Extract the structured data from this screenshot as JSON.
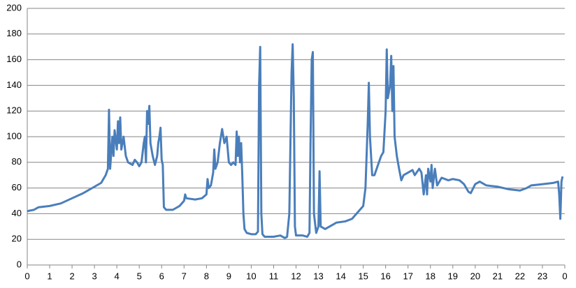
{
  "chart_data": {
    "type": "line",
    "color": "#4a7ebb",
    "grid": true,
    "xlim": [
      0,
      24
    ],
    "ylim": [
      0,
      200
    ],
    "yticks": [
      0,
      20,
      40,
      60,
      80,
      100,
      120,
      140,
      160,
      180,
      200
    ],
    "xticks": [
      0,
      1,
      2,
      3,
      4,
      5,
      6,
      7,
      8,
      9,
      10,
      11,
      12,
      13,
      14,
      15,
      16,
      17,
      18,
      19,
      20,
      21,
      22,
      23,
      {
        "value": 24,
        "label": "0"
      }
    ],
    "x": [
      0,
      0.3,
      0.5,
      1,
      1.5,
      2,
      2.5,
      3,
      3.3,
      3.5,
      3.6,
      3.65,
      3.7,
      3.8,
      3.85,
      3.9,
      4.0,
      4.05,
      4.1,
      4.15,
      4.2,
      4.3,
      4.4,
      4.5,
      4.7,
      4.8,
      4.9,
      5.0,
      5.1,
      5.2,
      5.25,
      5.3,
      5.35,
      5.4,
      5.45,
      5.5,
      5.6,
      5.7,
      5.8,
      5.85,
      5.9,
      5.95,
      6.0,
      6.05,
      6.1,
      6.2,
      6.5,
      6.8,
      7.0,
      7.05,
      7.1,
      7.5,
      7.8,
      8.0,
      8.05,
      8.1,
      8.2,
      8.3,
      8.35,
      8.4,
      8.5,
      8.6,
      8.7,
      8.8,
      8.9,
      9.0,
      9.1,
      9.2,
      9.3,
      9.35,
      9.4,
      9.45,
      9.5,
      9.55,
      9.6,
      9.65,
      9.7,
      9.8,
      10.0,
      10.2,
      10.3,
      10.35,
      10.4,
      10.45,
      10.5,
      10.6,
      11.0,
      11.3,
      11.5,
      11.6,
      11.7,
      11.8,
      11.85,
      11.9,
      11.95,
      12.0,
      12.3,
      12.5,
      12.6,
      12.65,
      12.7,
      12.75,
      12.8,
      12.9,
      13.0,
      13.05,
      13.1,
      13.3,
      13.5,
      13.8,
      14.2,
      14.5,
      14.8,
      15.0,
      15.1,
      15.2,
      15.25,
      15.3,
      15.4,
      15.5,
      15.7,
      15.8,
      15.9,
      16.0,
      16.05,
      16.1,
      16.2,
      16.25,
      16.3,
      16.35,
      16.4,
      16.5,
      16.6,
      16.7,
      16.8,
      17.0,
      17.2,
      17.3,
      17.5,
      17.6,
      17.7,
      17.8,
      17.85,
      17.9,
      18.0,
      18.05,
      18.1,
      18.2,
      18.3,
      18.5,
      18.8,
      19.0,
      19.3,
      19.5,
      19.7,
      19.8,
      20.0,
      20.2,
      20.5,
      21.0,
      21.5,
      22.0,
      22.3,
      22.5,
      23.0,
      23.5,
      23.7,
      23.75,
      23.8,
      23.85,
      23.9
    ],
    "values": [
      42,
      43,
      45,
      46,
      48,
      52,
      56,
      61,
      64,
      70,
      75,
      121,
      75,
      100,
      85,
      105,
      90,
      112,
      95,
      115,
      90,
      100,
      85,
      80,
      78,
      82,
      80,
      77,
      80,
      95,
      100,
      80,
      120,
      110,
      124,
      95,
      85,
      78,
      85,
      95,
      100,
      107,
      82,
      78,
      45,
      43,
      43,
      46,
      50,
      55,
      52,
      51,
      52,
      55,
      67,
      60,
      62,
      72,
      90,
      75,
      80,
      95,
      106,
      95,
      100,
      80,
      78,
      80,
      78,
      104,
      85,
      100,
      80,
      95,
      70,
      40,
      28,
      25,
      24,
      24,
      26,
      140,
      170,
      40,
      24,
      22,
      22,
      23,
      21,
      22,
      40,
      150,
      172,
      130,
      30,
      23,
      23,
      22,
      25,
      100,
      160,
      166,
      40,
      25,
      30,
      73,
      30,
      28,
      30,
      33,
      34,
      36,
      42,
      46,
      60,
      110,
      142,
      100,
      70,
      70,
      80,
      85,
      88,
      120,
      168,
      130,
      140,
      163,
      120,
      155,
      100,
      85,
      75,
      66,
      70,
      72,
      74,
      70,
      75,
      72,
      55,
      70,
      55,
      75,
      65,
      78,
      60,
      75,
      62,
      68,
      66,
      67,
      66,
      63,
      57,
      56,
      63,
      65,
      62,
      61,
      59,
      58,
      60,
      62,
      63,
      64,
      65,
      55,
      36,
      65,
      69
    ]
  }
}
